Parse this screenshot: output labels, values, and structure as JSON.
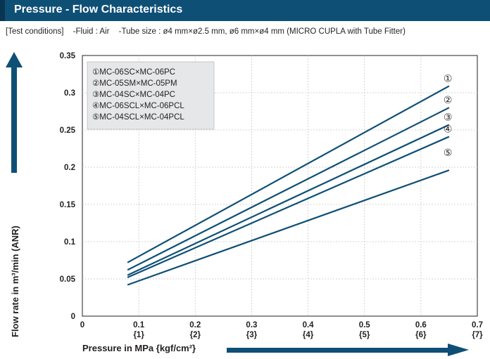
{
  "header": {
    "title": "Pressure - Flow Characteristics"
  },
  "conditions": {
    "label": "[Test conditions]",
    "fluid": "-Fluid : Air",
    "tube": "-Tube size : ø4 mm×ø2.5 mm, ø6 mm×ø4 mm (MICRO CUPLA with Tube Fitter)"
  },
  "colors": {
    "header": "#0e4f76",
    "line": "#0e4f76",
    "legend_bg": "#e6e7e8",
    "grid": "#c8c9ca"
  },
  "chart_data": {
    "type": "line",
    "ylabel": "Flow rate in m³/min (ANR)",
    "xlabel": "Pressure in MPa {kgf/cm²}",
    "xlim": [
      0,
      0.7
    ],
    "ylim": [
      0,
      0.35
    ],
    "grid": true,
    "legend_position": "top-left",
    "x_ticks": [
      "0",
      "0.1",
      "0.2",
      "0.3",
      "0.4",
      "0.5",
      "0.6",
      "0.7"
    ],
    "x_ticks_secondary": [
      "",
      "{1}",
      "{2}",
      "{3}",
      "{4}",
      "{5}",
      "{6}",
      "{7}"
    ],
    "y_ticks": [
      "0",
      "0.05",
      "0.1",
      "0.15",
      "0.2",
      "0.25",
      "0.3",
      "0.35"
    ],
    "series": [
      {
        "name": "①MC-06SC×MC-06PC",
        "marker": "①",
        "x": [
          0.08,
          0.65
        ],
        "y": [
          0.072,
          0.309
        ]
      },
      {
        "name": "②MC-05SM×MC-05PM",
        "marker": "②",
        "x": [
          0.08,
          0.65
        ],
        "y": [
          0.062,
          0.28
        ]
      },
      {
        "name": "③MC-04SC×MC-04PC",
        "marker": "③",
        "x": [
          0.08,
          0.65
        ],
        "y": [
          0.055,
          0.257
        ]
      },
      {
        "name": "④MC-06SCL×MC-06PCL",
        "marker": "④",
        "x": [
          0.08,
          0.65
        ],
        "y": [
          0.052,
          0.241
        ]
      },
      {
        "name": "⑤MC-04SCL×MC-04PCL",
        "marker": "⑤",
        "x": [
          0.08,
          0.65
        ],
        "y": [
          0.042,
          0.196
        ]
      }
    ]
  }
}
